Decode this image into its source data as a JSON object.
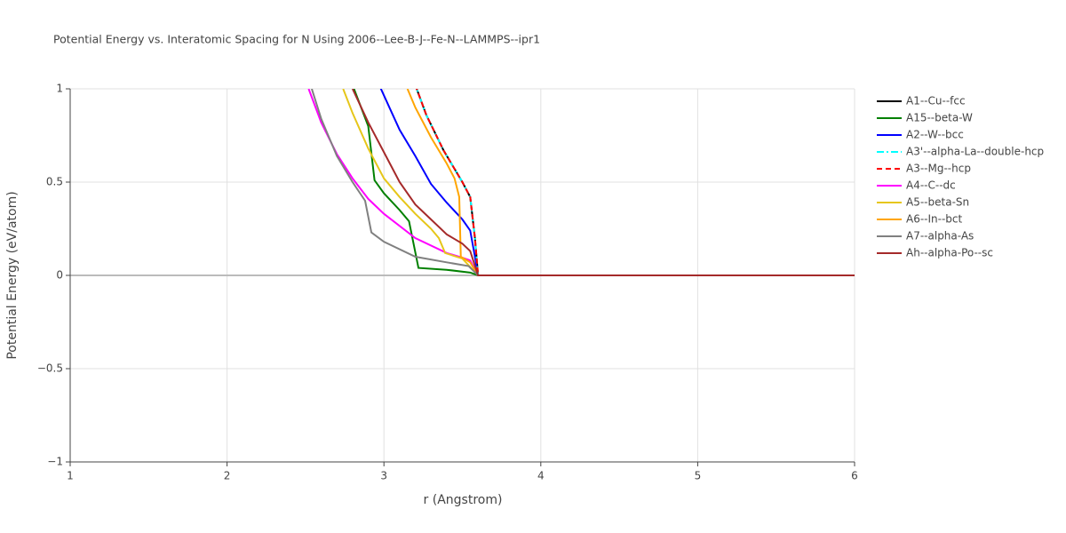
{
  "chart_data": {
    "type": "line",
    "title": "Potential Energy vs. Interatomic Spacing for N Using 2006--Lee-B-J--Fe-N--LAMMPS--ipr1",
    "x_label": "r (Angstrom)",
    "y_label": "Potential Energy (eV/atom)",
    "xlim": [
      1,
      6
    ],
    "xticks": [
      1,
      2,
      3,
      4,
      5,
      6
    ],
    "ylim": [
      -1,
      1
    ],
    "yticks": [
      {
        "value": -1,
        "label": "−1"
      },
      {
        "value": -0.5,
        "label": "−0.5"
      },
      0,
      0.5,
      1
    ],
    "grid": true,
    "legend": "right",
    "series": [
      {
        "name": "A1--Cu--fcc",
        "color": "#000000",
        "dash": "solid",
        "x": [
          3.2,
          3.27,
          3.38,
          3.5,
          3.55,
          3.58,
          3.6,
          6
        ],
        "values": [
          1.02,
          0.86,
          0.67,
          0.5,
          0.42,
          0.2,
          0,
          0
        ]
      },
      {
        "name": "A15--beta-W",
        "color": "#008000",
        "dash": "solid",
        "x": [
          2.8,
          2.9,
          2.94,
          3.0,
          3.1,
          3.16,
          3.22,
          3.4,
          3.55,
          3.6,
          6
        ],
        "values": [
          1.02,
          0.8,
          0.51,
          0.44,
          0.35,
          0.29,
          0.04,
          0.03,
          0.015,
          0,
          0
        ]
      },
      {
        "name": "A2--W--bcc",
        "color": "#0000ff",
        "dash": "solid",
        "x": [
          2.97,
          3.1,
          3.2,
          3.3,
          3.4,
          3.5,
          3.55,
          3.58,
          3.6,
          6
        ],
        "values": [
          1.02,
          0.78,
          0.64,
          0.49,
          0.39,
          0.3,
          0.24,
          0.1,
          0,
          0
        ]
      },
      {
        "name": "A3'--alpha-La--double-hcp",
        "color": "#00ffff",
        "dash": "dashdot",
        "x": [
          3.2,
          3.27,
          3.38,
          3.5,
          3.55,
          3.58,
          3.6,
          6
        ],
        "values": [
          1.02,
          0.86,
          0.67,
          0.5,
          0.42,
          0.2,
          0,
          0
        ]
      },
      {
        "name": "A3--Mg--hcp",
        "color": "#ff0000",
        "dash": "dash",
        "x": [
          3.2,
          3.27,
          3.38,
          3.5,
          3.55,
          3.58,
          3.6,
          6
        ],
        "values": [
          1.02,
          0.86,
          0.67,
          0.5,
          0.42,
          0.2,
          0,
          0
        ]
      },
      {
        "name": "A4--C--dc",
        "color": "#ff00ff",
        "dash": "solid",
        "x": [
          2.52,
          2.6,
          2.7,
          2.8,
          2.9,
          3.0,
          3.2,
          3.4,
          3.5,
          3.55,
          3.6,
          6
        ],
        "values": [
          1.0,
          0.82,
          0.65,
          0.52,
          0.41,
          0.33,
          0.2,
          0.12,
          0.095,
          0.08,
          0,
          0
        ]
      },
      {
        "name": "A5--beta-Sn",
        "color": "#e6c619",
        "dash": "solid",
        "x": [
          2.74,
          2.8,
          2.9,
          3.0,
          3.1,
          3.2,
          3.3,
          3.35,
          3.39,
          3.5,
          3.6,
          6
        ],
        "values": [
          1.0,
          0.87,
          0.68,
          0.52,
          0.42,
          0.33,
          0.25,
          0.2,
          0.12,
          0.09,
          0,
          0
        ]
      },
      {
        "name": "A6--In--bct",
        "color": "#ffa500",
        "dash": "solid",
        "x": [
          3.15,
          3.2,
          3.3,
          3.4,
          3.45,
          3.48,
          3.49,
          3.55,
          3.6,
          6
        ],
        "values": [
          1.0,
          0.9,
          0.74,
          0.6,
          0.52,
          0.42,
          0.1,
          0.07,
          0,
          0
        ]
      },
      {
        "name": "A7--alpha-As",
        "color": "#808080",
        "dash": "solid",
        "x": [
          2.54,
          2.6,
          2.7,
          2.8,
          2.88,
          2.92,
          3.0,
          3.2,
          3.4,
          3.54,
          3.6,
          6
        ],
        "values": [
          1.0,
          0.84,
          0.64,
          0.5,
          0.4,
          0.23,
          0.18,
          0.1,
          0.07,
          0.05,
          0,
          0
        ]
      },
      {
        "name": "Ah--alpha-Po--sc",
        "color": "#a52a2a",
        "dash": "solid",
        "x": [
          2.8,
          2.9,
          3.0,
          3.1,
          3.2,
          3.3,
          3.4,
          3.5,
          3.55,
          3.6,
          6
        ],
        "values": [
          1.0,
          0.82,
          0.66,
          0.5,
          0.38,
          0.3,
          0.22,
          0.17,
          0.13,
          0,
          0
        ]
      }
    ]
  }
}
